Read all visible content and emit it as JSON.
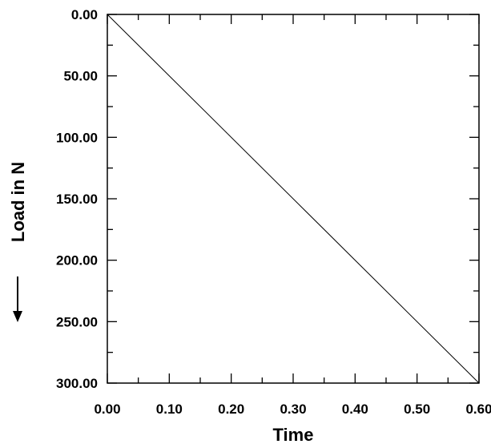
{
  "chart_data": {
    "type": "line",
    "title": "",
    "xlabel": "Time",
    "ylabel": "Load in N",
    "xlim": [
      0,
      0.6
    ],
    "ylim": [
      0,
      300
    ],
    "y_inverted": true,
    "grid": false,
    "xticks": [
      "0.00",
      "0.10",
      "0.20",
      "0.30",
      "0.40",
      "0.50",
      "0.60"
    ],
    "yticks": [
      "0.00",
      "50.00",
      "100.00",
      "150.00",
      "200.00",
      "250.00",
      "300.00"
    ],
    "series": [
      {
        "x": [
          0.0,
          0.6
        ],
        "y": [
          0,
          300
        ],
        "color": "#000000"
      }
    ]
  }
}
